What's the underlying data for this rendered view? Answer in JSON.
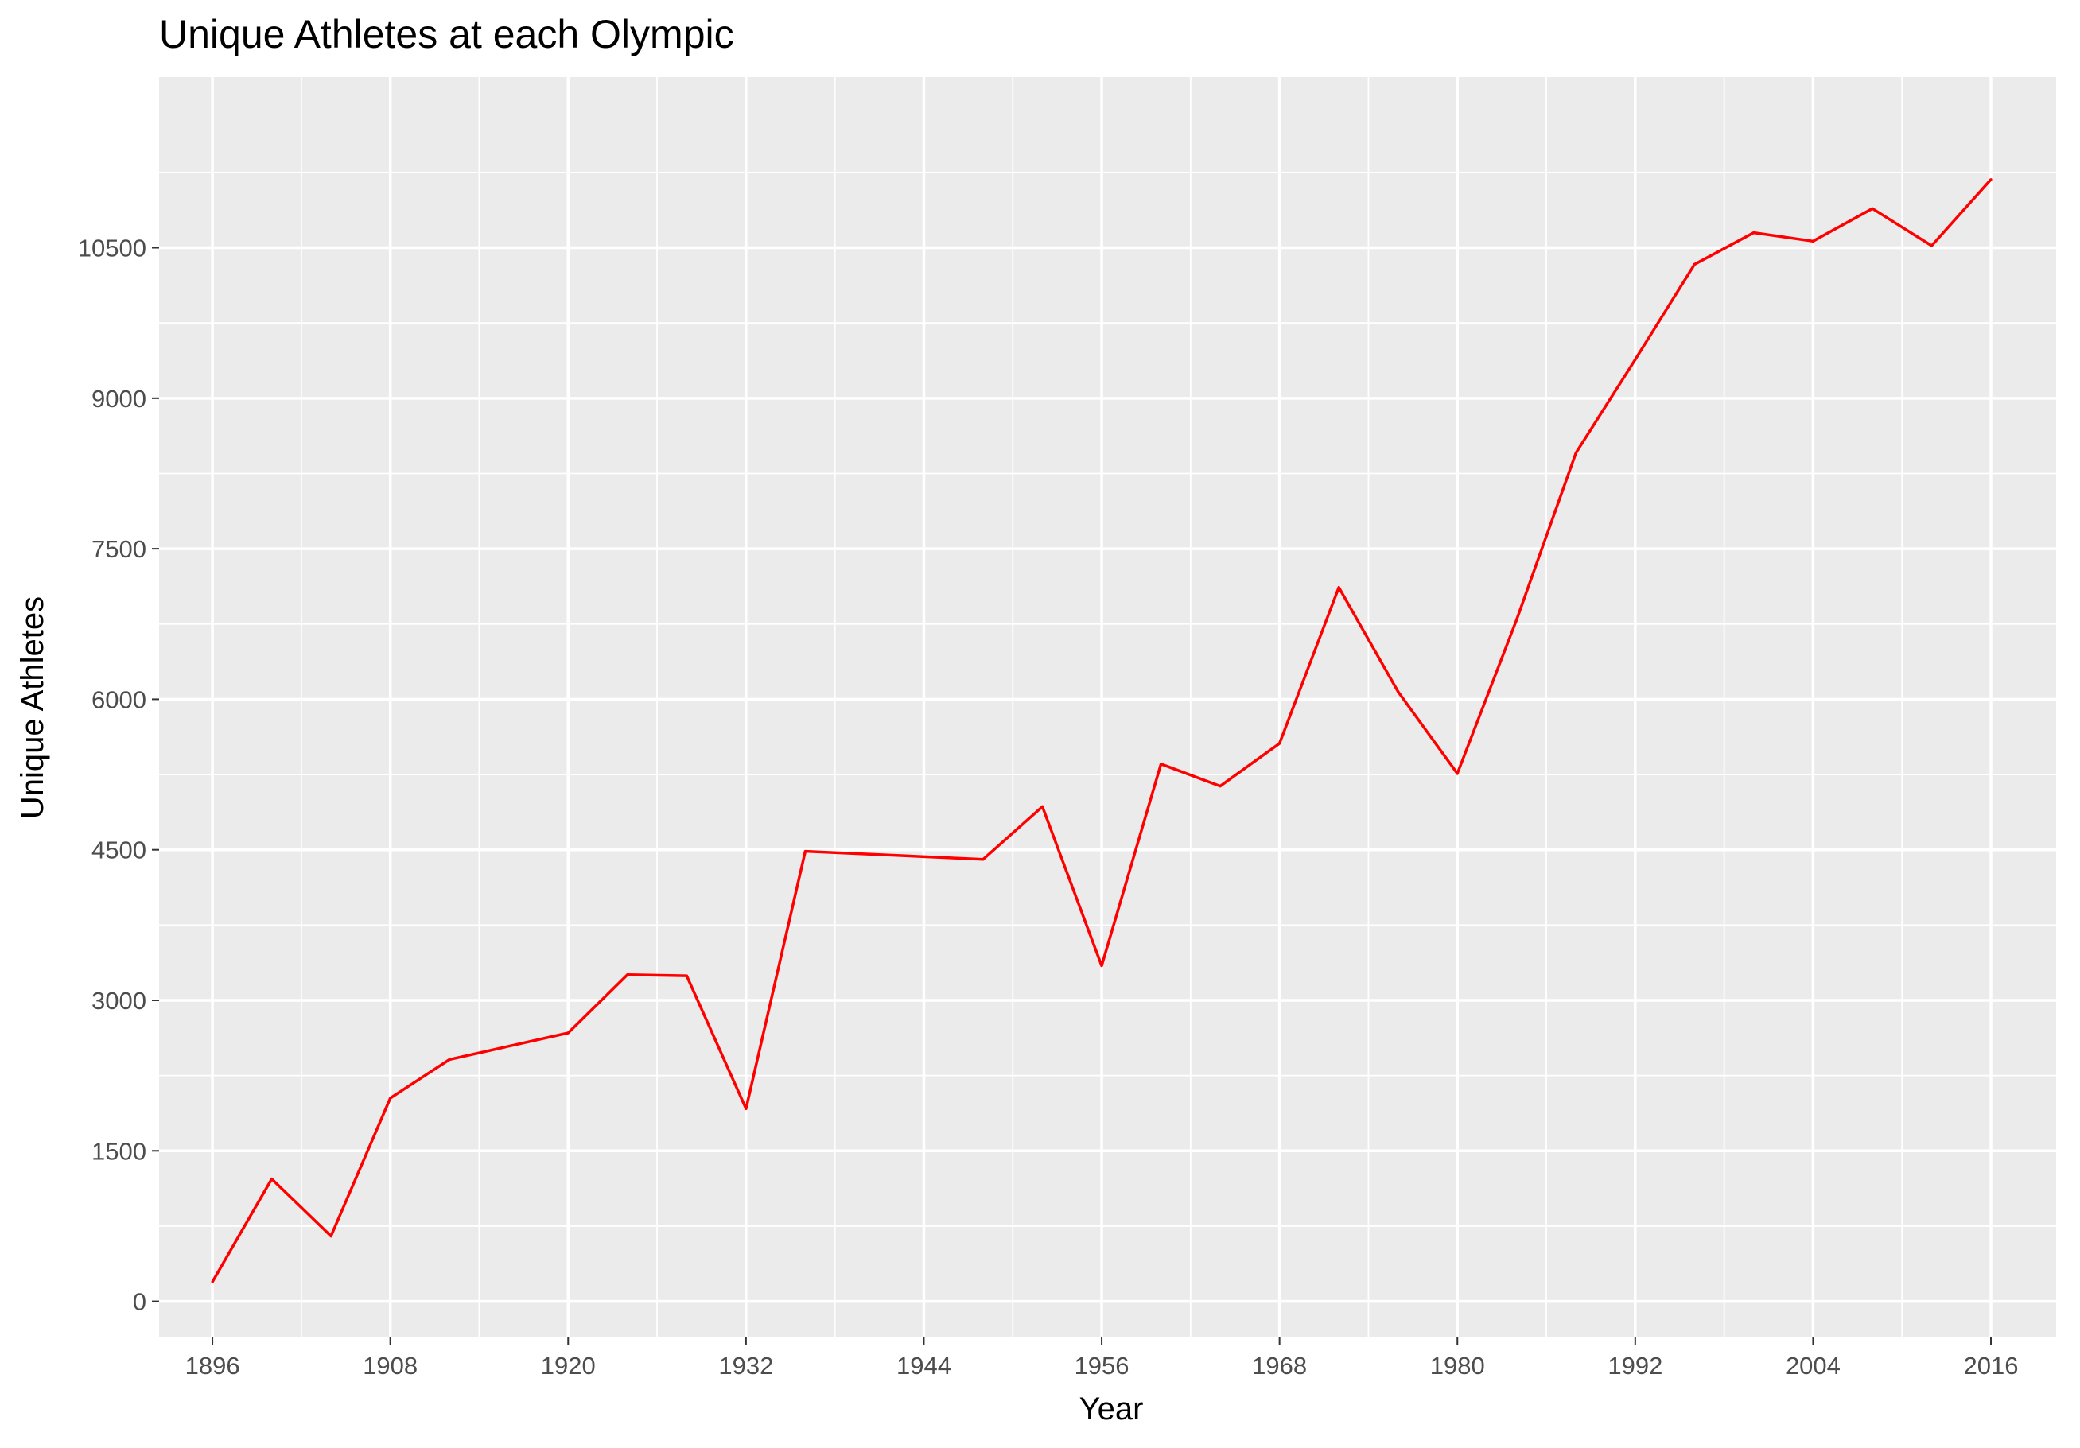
{
  "chart_data": {
    "type": "line",
    "title": "Unique Athletes at each Olympic",
    "xlabel": "Year",
    "ylabel": "Unique Athletes",
    "xlim": [
      1892.4,
      2020.4
    ],
    "ylim": [
      -360,
      12200
    ],
    "x_ticks": [
      1896,
      1908,
      1920,
      1932,
      1944,
      1956,
      1968,
      1980,
      1992,
      2004,
      2016
    ],
    "x_tick_labels": [
      "1896",
      "1908",
      "1920",
      "1932",
      "1944",
      "1956",
      "1968",
      "1980",
      "1992",
      "2004",
      "2016"
    ],
    "y_ticks": [
      0,
      1500,
      3000,
      4500,
      6000,
      7500,
      9000,
      10500
    ],
    "y_tick_labels": [
      "0",
      "1500",
      "3000",
      "4500",
      "6000",
      "7500",
      "9000",
      "10500"
    ],
    "grid": true,
    "legend": "none",
    "colors": {
      "panel_background": "#ebebeb",
      "grid": "#ffffff",
      "line": "#ff0000"
    },
    "series": [
      {
        "x": [
          1896,
          1900,
          1904,
          1908,
          1912,
          1920,
          1924,
          1928,
          1932,
          1936,
          1948,
          1952,
          1956,
          1960,
          1964,
          1968,
          1972,
          1976,
          1980,
          1984,
          1988,
          1992,
          1996,
          2000,
          2004,
          2008,
          2012,
          2016
        ],
        "values": [
          195,
          1220,
          650,
          2025,
          2410,
          2675,
          3255,
          3245,
          1920,
          4485,
          4405,
          4930,
          3345,
          5355,
          5135,
          5560,
          7115,
          6075,
          5260,
          6795,
          8455,
          9385,
          10335,
          10650,
          10565,
          10890,
          10520,
          11180
        ]
      }
    ]
  }
}
